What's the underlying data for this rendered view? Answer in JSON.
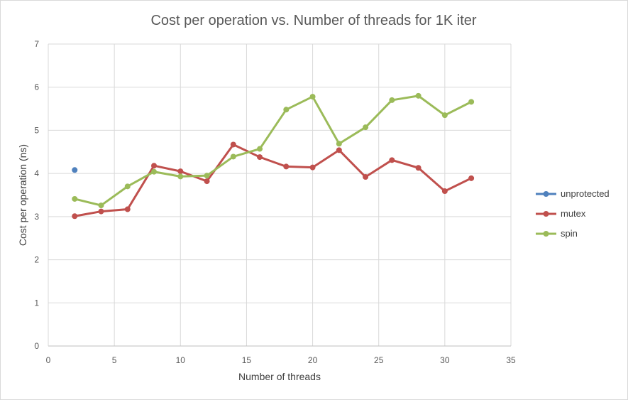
{
  "chart_data": {
    "type": "line",
    "title": "Cost per operation vs. Number of threads for 1K iter",
    "xlabel": "Number of threads",
    "ylabel": "Cost per operation (ns)",
    "xlim": [
      0,
      35
    ],
    "ylim": [
      0,
      7
    ],
    "xticks": [
      0,
      5,
      10,
      15,
      20,
      25,
      30,
      35
    ],
    "yticks": [
      0,
      1,
      2,
      3,
      4,
      5,
      6,
      7
    ],
    "grid": true,
    "legend_position": "right",
    "series": [
      {
        "name": "unprotected",
        "color": "#4f81bd",
        "x": [
          2
        ],
        "y": [
          4.08
        ]
      },
      {
        "name": "mutex",
        "color": "#c0504d",
        "x": [
          2,
          4,
          6,
          8,
          10,
          12,
          14,
          16,
          18,
          20,
          22,
          24,
          26,
          28,
          30,
          32
        ],
        "y": [
          3.01,
          3.12,
          3.17,
          4.18,
          4.05,
          3.82,
          4.67,
          4.38,
          4.16,
          4.14,
          4.54,
          3.92,
          4.31,
          4.13,
          3.59,
          3.89
        ]
      },
      {
        "name": "spin",
        "color": "#9bbb59",
        "x": [
          2,
          4,
          6,
          8,
          10,
          12,
          14,
          16,
          18,
          20,
          22,
          24,
          26,
          28,
          30,
          32
        ],
        "y": [
          3.41,
          3.26,
          3.7,
          4.04,
          3.93,
          3.95,
          4.39,
          4.57,
          5.48,
          5.78,
          4.69,
          5.07,
          5.7,
          5.8,
          5.35,
          5.66
        ]
      }
    ]
  }
}
